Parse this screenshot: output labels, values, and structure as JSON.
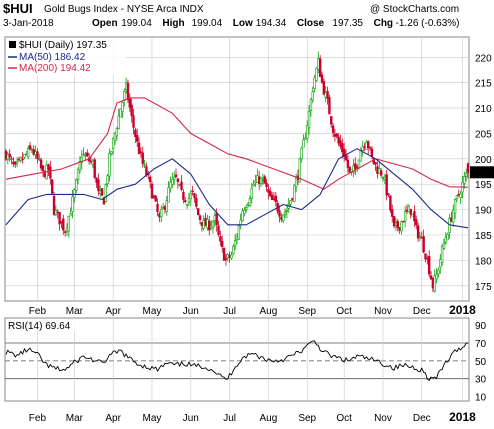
{
  "header": {
    "symbol": "$HUI",
    "name": "Gold Bugs Index - NYSE Arca INDX",
    "watermark": "@ StockCharts.com",
    "date": "3-Jan-2018",
    "open_label": "Open",
    "open": "199.04",
    "high_label": "High",
    "high": "199.04",
    "low_label": "Low",
    "low": "194.34",
    "close_label": "Close",
    "close": "197.35",
    "chg_label": "Chg",
    "chg": "-1.26 (-0.63%)"
  },
  "legend": {
    "price": "$HUI (Daily) 197.35",
    "ma50": "MA(50) 186.42",
    "ma200": "MA(200) 194.42",
    "rsi": "RSI(14) 69.64"
  },
  "colors": {
    "up": "#00a000",
    "down": "#c8002a",
    "ma50": "#1c2a8c",
    "ma200": "#d4284a",
    "grid": "#c8c8c8",
    "rsi": "#000000"
  },
  "chart_data": [
    {
      "type": "candlestick",
      "title": "$HUI (Daily)",
      "y_ticks": [
        175,
        180,
        185,
        190,
        195,
        200,
        205,
        210,
        215,
        220
      ],
      "ylim": [
        172,
        224
      ],
      "x_ticks": [
        "Feb",
        "Mar",
        "Apr",
        "May",
        "Jun",
        "Jul",
        "Aug",
        "Sep",
        "Oct",
        "Nov",
        "Dec",
        "2018"
      ],
      "close_path": [
        [
          0,
          201
        ],
        [
          5,
          198
        ],
        [
          9,
          200
        ],
        [
          14,
          202
        ],
        [
          18,
          199
        ],
        [
          20,
          197
        ],
        [
          23,
          198
        ],
        [
          26,
          190
        ],
        [
          29,
          188
        ],
        [
          32,
          186
        ],
        [
          35,
          190
        ],
        [
          38,
          195
        ],
        [
          41,
          201
        ],
        [
          44,
          200
        ],
        [
          47,
          199
        ],
        [
          50,
          193
        ],
        [
          53,
          192
        ],
        [
          56,
          200
        ],
        [
          59,
          205
        ],
        [
          62,
          210
        ],
        [
          65,
          214
        ],
        [
          68,
          208
        ],
        [
          71,
          203
        ],
        [
          74,
          199
        ],
        [
          77,
          196
        ],
        [
          80,
          192
        ],
        [
          83,
          188
        ],
        [
          86,
          191
        ],
        [
          89,
          195
        ],
        [
          92,
          196
        ],
        [
          95,
          193
        ],
        [
          98,
          192
        ],
        [
          101,
          193
        ],
        [
          104,
          189
        ],
        [
          107,
          187
        ],
        [
          110,
          187
        ],
        [
          113,
          188
        ],
        [
          116,
          183
        ],
        [
          119,
          180
        ],
        [
          122,
          181
        ],
        [
          125,
          185
        ],
        [
          128,
          190
        ],
        [
          131,
          192
        ],
        [
          134,
          195
        ],
        [
          137,
          196
        ],
        [
          140,
          195
        ],
        [
          143,
          192
        ],
        [
          146,
          191
        ],
        [
          149,
          189
        ],
        [
          152,
          190
        ],
        [
          155,
          193
        ],
        [
          158,
          197
        ],
        [
          161,
          203
        ],
        [
          164,
          209
        ],
        [
          166,
          214
        ],
        [
          167,
          216
        ],
        [
          169,
          219
        ],
        [
          171,
          215
        ],
        [
          174,
          211
        ],
        [
          177,
          206
        ],
        [
          180,
          203
        ],
        [
          183,
          201
        ],
        [
          186,
          197
        ],
        [
          189,
          198
        ],
        [
          192,
          202
        ],
        [
          195,
          204
        ],
        [
          198,
          200
        ],
        [
          201,
          198
        ],
        [
          204,
          197
        ],
        [
          207,
          192
        ],
        [
          210,
          186
        ],
        [
          213,
          187
        ],
        [
          216,
          189
        ],
        [
          219,
          190
        ],
        [
          222,
          186
        ],
        [
          225,
          184
        ],
        [
          228,
          180
        ],
        [
          231,
          175
        ],
        [
          233,
          177
        ],
        [
          236,
          182
        ],
        [
          239,
          186
        ],
        [
          242,
          190
        ],
        [
          245,
          193
        ],
        [
          248,
          196
        ],
        [
          250,
          197.35
        ]
      ],
      "series": [
        {
          "name": "MA(50)",
          "values": [
            [
              0,
              187
            ],
            [
              12,
              192
            ],
            [
              22,
              193
            ],
            [
              32,
              193
            ],
            [
              42,
              193
            ],
            [
              52,
              192
            ],
            [
              60,
              194
            ],
            [
              70,
              195
            ],
            [
              80,
              198
            ],
            [
              90,
              200
            ],
            [
              100,
              197
            ],
            [
              110,
              191
            ],
            [
              120,
              187
            ],
            [
              130,
              187
            ],
            [
              140,
              189
            ],
            [
              150,
              191
            ],
            [
              160,
              190
            ],
            [
              170,
              193
            ],
            [
              180,
              200
            ],
            [
              190,
              202
            ],
            [
              200,
              200
            ],
            [
              210,
              197
            ],
            [
              220,
              194
            ],
            [
              230,
              190
            ],
            [
              240,
              187
            ],
            [
              250,
              186.42
            ]
          ]
        },
        {
          "name": "MA(200)",
          "values": [
            [
              0,
              196
            ],
            [
              15,
              197
            ],
            [
              30,
              198
            ],
            [
              45,
              200
            ],
            [
              55,
              205
            ],
            [
              60,
              211
            ],
            [
              67,
              212
            ],
            [
              75,
              212
            ],
            [
              90,
              209
            ],
            [
              100,
              205
            ],
            [
              110,
              203
            ],
            [
              120,
              201
            ],
            [
              130,
              200
            ],
            [
              145,
              198
            ],
            [
              160,
              196
            ],
            [
              172,
              194
            ],
            [
              180,
              196
            ],
            [
              190,
              198
            ],
            [
              200,
              200
            ],
            [
              210,
              199
            ],
            [
              220,
              198
            ],
            [
              230,
              196
            ],
            [
              240,
              194.5
            ],
            [
              250,
              194.42
            ]
          ]
        }
      ]
    },
    {
      "type": "line",
      "title": "RSI(14)",
      "y_ticks": [
        10,
        30,
        50,
        70,
        90
      ],
      "ylim": [
        5,
        98
      ],
      "reference_lines": [
        30,
        50,
        70
      ],
      "x_ticks": [
        "Feb",
        "Mar",
        "Apr",
        "May",
        "Jun",
        "Jul",
        "Aug",
        "Sep",
        "Oct",
        "Nov",
        "Dec",
        "2018"
      ],
      "series": [
        {
          "name": "RSI(14)",
          "values": [
            [
              0,
              60
            ],
            [
              6,
              56
            ],
            [
              12,
              63
            ],
            [
              17,
              57
            ],
            [
              22,
              45
            ],
            [
              27,
              41
            ],
            [
              32,
              40
            ],
            [
              37,
              48
            ],
            [
              42,
              55
            ],
            [
              47,
              51
            ],
            [
              52,
              47
            ],
            [
              57,
              57
            ],
            [
              62,
              61
            ],
            [
              67,
              52
            ],
            [
              72,
              46
            ],
            [
              77,
              43
            ],
            [
              82,
              40
            ],
            [
              87,
              47
            ],
            [
              92,
              45
            ],
            [
              97,
              47
            ],
            [
              102,
              44
            ],
            [
              107,
              44
            ],
            [
              112,
              40
            ],
            [
              117,
              31
            ],
            [
              120,
              30
            ],
            [
              124,
              44
            ],
            [
              129,
              55
            ],
            [
              134,
              58
            ],
            [
              139,
              53
            ],
            [
              144,
              50
            ],
            [
              149,
              51
            ],
            [
              154,
              55
            ],
            [
              159,
              60
            ],
            [
              164,
              68
            ],
            [
              167,
              72
            ],
            [
              170,
              64
            ],
            [
              175,
              56
            ],
            [
              180,
              53
            ],
            [
              185,
              50
            ],
            [
              190,
              55
            ],
            [
              195,
              53
            ],
            [
              200,
              50
            ],
            [
              205,
              46
            ],
            [
              210,
              42
            ],
            [
              215,
              45
            ],
            [
              220,
              43
            ],
            [
              225,
              40
            ],
            [
              229,
              30
            ],
            [
              233,
              31
            ],
            [
              238,
              48
            ],
            [
              242,
              58
            ],
            [
              246,
              65
            ],
            [
              250,
              69.64
            ]
          ]
        }
      ]
    }
  ]
}
